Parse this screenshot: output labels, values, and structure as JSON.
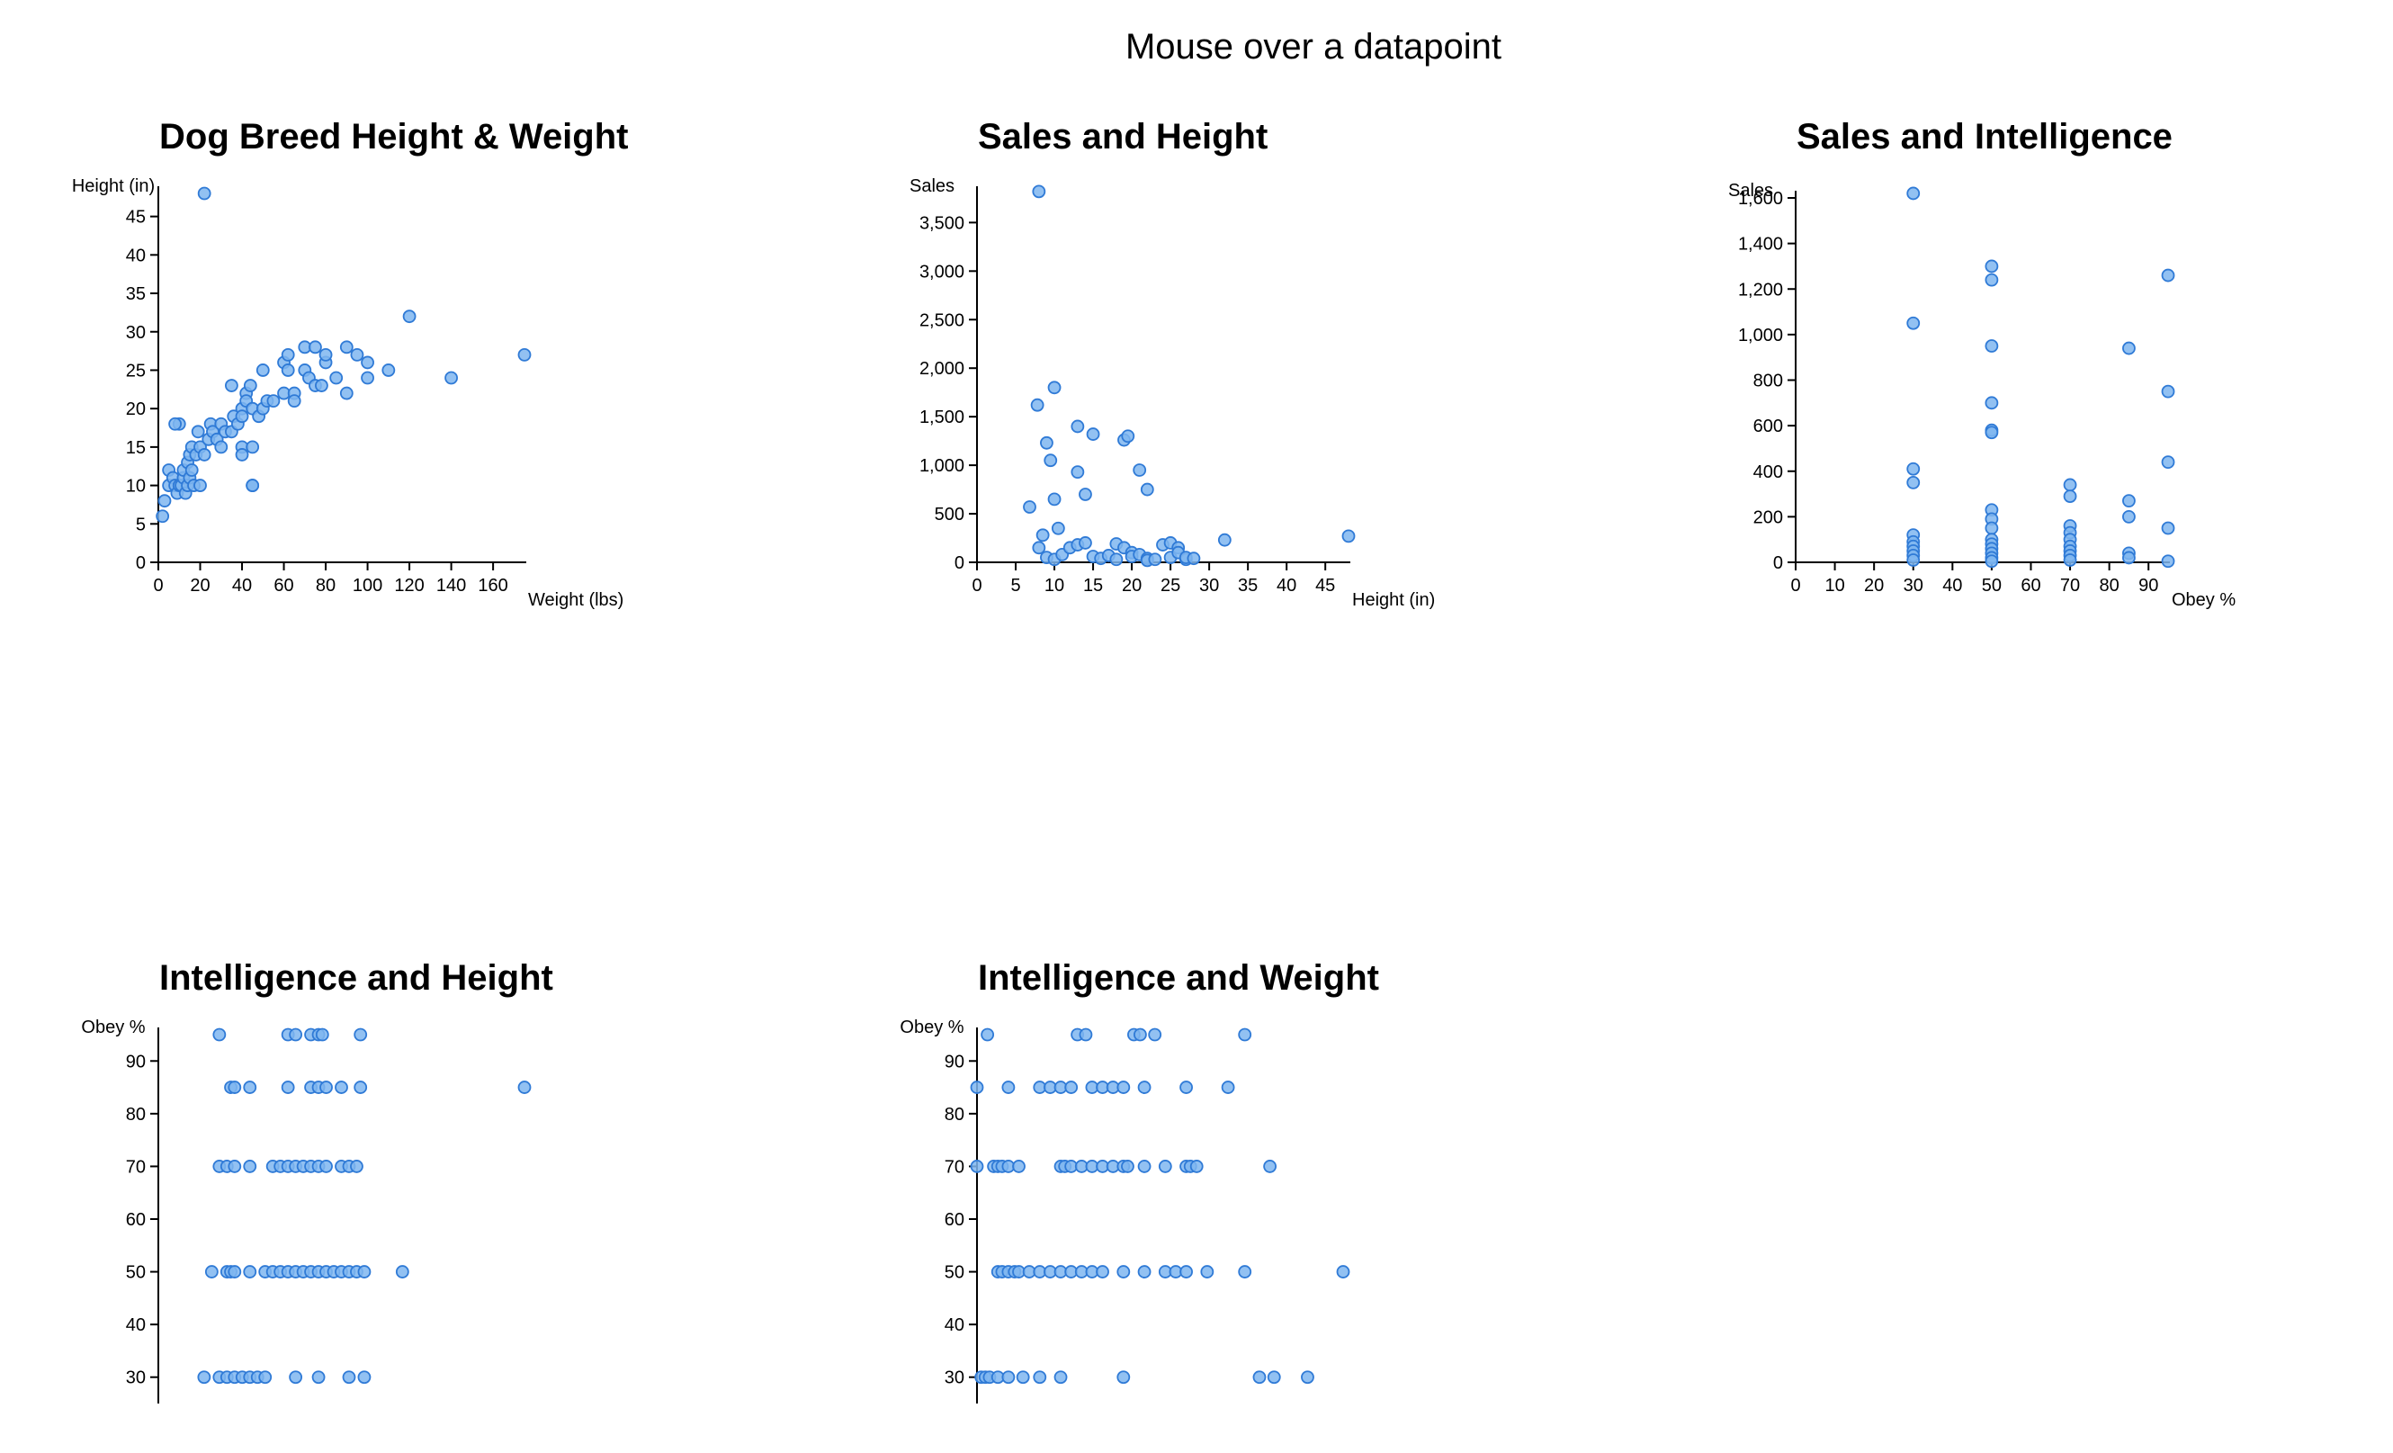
{
  "header": {
    "hover_message": "Mouse over a datapoint"
  },
  "colors": {
    "point_fill": "#7fb6f0",
    "point_stroke": "#2f7ad6"
  },
  "chart_data": [
    {
      "id": "c1",
      "type": "scatter",
      "title": "Dog Breed Height & Weight",
      "xlabel": "Weight (lbs)",
      "ylabel": "Height (in)",
      "xlim": [
        0,
        175
      ],
      "ylim": [
        0,
        48
      ],
      "xticks": [
        0,
        20,
        40,
        60,
        80,
        100,
        120,
        140,
        160
      ],
      "yticks": [
        0,
        5,
        10,
        15,
        20,
        25,
        30,
        35,
        40,
        45
      ],
      "x": [
        2,
        3,
        5,
        5,
        7,
        8,
        9,
        10,
        10,
        11,
        12,
        12,
        13,
        14,
        14,
        15,
        15,
        16,
        16,
        17,
        18,
        19,
        20,
        20,
        22,
        24,
        25,
        26,
        28,
        30,
        30,
        32,
        35,
        35,
        36,
        38,
        40,
        40,
        40,
        40,
        42,
        42,
        44,
        45,
        45,
        45,
        48,
        50,
        50,
        52,
        55,
        60,
        60,
        62,
        62,
        65,
        65,
        70,
        70,
        72,
        75,
        75,
        78,
        80,
        80,
        85,
        90,
        90,
        95,
        100,
        100,
        110,
        120,
        140,
        175,
        22,
        8,
        45
      ],
      "y": [
        6,
        8,
        10,
        12,
        11,
        10,
        9,
        10,
        18,
        10,
        11,
        12,
        9,
        10,
        13,
        11,
        14,
        12,
        15,
        10,
        14,
        17,
        10,
        15,
        14,
        16,
        18,
        17,
        16,
        18,
        15,
        17,
        17,
        23,
        19,
        18,
        20,
        15,
        14,
        19,
        22,
        21,
        23,
        20,
        15,
        10,
        19,
        20,
        25,
        21,
        21,
        22,
        26,
        27,
        25,
        22,
        21,
        28,
        25,
        24,
        28,
        23,
        23,
        26,
        27,
        24,
        28,
        22,
        27,
        26,
        24,
        25,
        32,
        24,
        27,
        48,
        18,
        10
      ]
    },
    {
      "id": "c2",
      "type": "scatter",
      "title": "Sales and Height",
      "xlabel": "Height (in)",
      "ylabel": "Sales",
      "xlim": [
        0,
        48
      ],
      "ylim": [
        0,
        3800
      ],
      "xticks": [
        0,
        5,
        10,
        15,
        20,
        25,
        30,
        35,
        40,
        45
      ],
      "yticks": [
        0,
        500,
        1000,
        1500,
        2000,
        2500,
        3000,
        3500
      ],
      "tick_labels_y": [
        "0",
        "500",
        "1,000",
        "1,500",
        "2,000",
        "2,500",
        "3,000",
        "3,500"
      ],
      "x": [
        8,
        7.8,
        9,
        9.5,
        10,
        10,
        6.8,
        10.5,
        8.5,
        8,
        9,
        10,
        11,
        12,
        13,
        14,
        15,
        16,
        17,
        18,
        18,
        19,
        20,
        20,
        21,
        22,
        22,
        23,
        24,
        25,
        25,
        26,
        26,
        27,
        27,
        28,
        32,
        48,
        13,
        15,
        19,
        19.5,
        21,
        22,
        14,
        13
      ],
      "y": [
        3820,
        1620,
        1230,
        1050,
        1800,
        650,
        570,
        350,
        280,
        150,
        50,
        30,
        80,
        150,
        180,
        200,
        60,
        40,
        70,
        30,
        190,
        150,
        100,
        60,
        80,
        40,
        20,
        30,
        180,
        200,
        50,
        150,
        100,
        30,
        50,
        40,
        230,
        270,
        1400,
        1320,
        1260,
        1300,
        950,
        750,
        700,
        930
      ]
    },
    {
      "id": "c3",
      "type": "scatter",
      "title": "Sales and Intelligence",
      "xlabel": "Obey %",
      "ylabel": "Sales",
      "xlim": [
        0,
        95
      ],
      "ylim": [
        0,
        1600
      ],
      "xticks": [
        0,
        10,
        20,
        30,
        40,
        50,
        60,
        70,
        80,
        90
      ],
      "yticks": [
        0,
        200,
        400,
        600,
        800,
        1000,
        1200,
        1400,
        1600
      ],
      "tick_labels_y": [
        "0",
        "200",
        "400",
        "600",
        "800",
        "1,000",
        "1,200",
        "1,400",
        "1,600"
      ],
      "x": [
        30,
        30,
        30,
        30,
        30,
        30,
        30,
        30,
        30,
        30,
        50,
        50,
        50,
        50,
        50,
        50,
        50,
        50,
        50,
        50,
        50,
        50,
        50,
        50,
        50,
        70,
        70,
        70,
        70,
        70,
        70,
        70,
        70,
        70,
        85,
        85,
        85,
        85,
        85,
        95,
        95,
        95,
        95,
        95
      ],
      "y": [
        1620,
        1050,
        410,
        350,
        120,
        90,
        70,
        50,
        30,
        10,
        1300,
        1240,
        950,
        700,
        580,
        570,
        230,
        190,
        150,
        100,
        80,
        60,
        40,
        20,
        5,
        340,
        290,
        160,
        130,
        100,
        70,
        50,
        30,
        10,
        940,
        270,
        200,
        40,
        20,
        1260,
        750,
        440,
        150,
        5
      ]
    },
    {
      "id": "c4",
      "type": "scatter",
      "title": "Intelligence and Height",
      "xlabel": "Height (in)",
      "ylabel": "Obey %",
      "xlim": [
        0,
        48
      ],
      "ylim": [
        25,
        95
      ],
      "xticks": [],
      "yticks": [
        30,
        40,
        50,
        60,
        70,
        80,
        90
      ],
      "x": [
        8,
        17,
        18,
        20,
        21,
        21.5,
        26.5,
        9.5,
        10,
        12,
        17,
        20,
        21,
        22,
        24,
        26.5,
        48,
        8,
        9,
        10,
        12,
        15,
        16,
        17,
        18,
        19,
        20,
        21,
        22,
        24,
        25,
        26,
        7,
        9,
        9.5,
        10,
        12,
        14,
        15,
        16,
        17,
        18,
        19,
        20,
        21,
        22,
        23,
        24,
        25,
        26,
        27,
        32,
        6,
        8,
        9,
        10,
        11,
        12,
        13,
        14,
        18,
        21,
        25,
        27
      ],
      "y": [
        95,
        95,
        95,
        95,
        95,
        95,
        95,
        85,
        85,
        85,
        85,
        85,
        85,
        85,
        85,
        85,
        85,
        70,
        70,
        70,
        70,
        70,
        70,
        70,
        70,
        70,
        70,
        70,
        70,
        70,
        70,
        70,
        50,
        50,
        50,
        50,
        50,
        50,
        50,
        50,
        50,
        50,
        50,
        50,
        50,
        50,
        50,
        50,
        50,
        50,
        50,
        50,
        30,
        30,
        30,
        30,
        30,
        30,
        30,
        30,
        30,
        30,
        30,
        30
      ]
    },
    {
      "id": "c5",
      "type": "scatter",
      "title": "Intelligence and Weight",
      "xlabel": "Weight (lbs)",
      "ylabel": "Obey %",
      "xlim": [
        0,
        175
      ],
      "ylim": [
        25,
        95
      ],
      "xticks": [],
      "yticks": [
        30,
        40,
        50,
        60,
        70,
        80,
        90
      ],
      "x": [
        5,
        48,
        52,
        75,
        78,
        85,
        128,
        0,
        15,
        30,
        35,
        40,
        45,
        55,
        60,
        65,
        70,
        80,
        100,
        120,
        0,
        8,
        10,
        12,
        15,
        20,
        40,
        42,
        45,
        50,
        55,
        60,
        65,
        70,
        72,
        80,
        90,
        100,
        102,
        105,
        140,
        10,
        12,
        15,
        18,
        20,
        25,
        30,
        35,
        40,
        45,
        50,
        55,
        60,
        70,
        80,
        90,
        95,
        100,
        110,
        128,
        175,
        2,
        4,
        6,
        10,
        15,
        22,
        30,
        40,
        70,
        135,
        142,
        158
      ],
      "y": [
        95,
        95,
        95,
        95,
        95,
        95,
        95,
        85,
        85,
        85,
        85,
        85,
        85,
        85,
        85,
        85,
        85,
        85,
        85,
        85,
        70,
        70,
        70,
        70,
        70,
        70,
        70,
        70,
        70,
        70,
        70,
        70,
        70,
        70,
        70,
        70,
        70,
        70,
        70,
        70,
        70,
        50,
        50,
        50,
        50,
        50,
        50,
        50,
        50,
        50,
        50,
        50,
        50,
        50,
        50,
        50,
        50,
        50,
        50,
        50,
        50,
        50,
        30,
        30,
        30,
        30,
        30,
        30,
        30,
        30,
        30,
        30,
        30,
        30
      ]
    }
  ]
}
